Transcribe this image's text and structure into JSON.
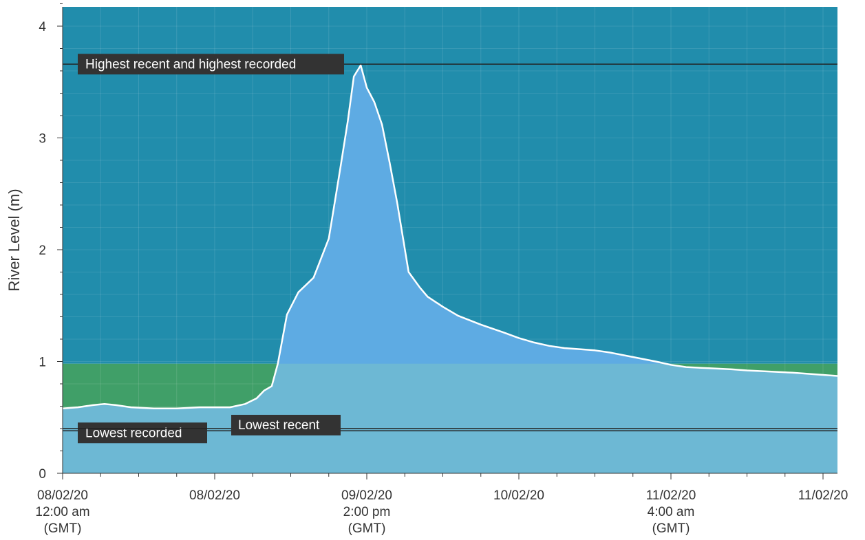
{
  "chart_data": {
    "type": "area",
    "ylabel": "River Level (m)",
    "xlabel": "",
    "ylim": [
      0,
      4.2
    ],
    "yticks": [
      "0",
      "1",
      "2",
      "3",
      "4"
    ],
    "x_range_hours": [
      0,
      102
    ],
    "xticks": [
      {
        "hour": 0,
        "lines": [
          "08/02/20",
          "12:00 am",
          "(GMT)"
        ]
      },
      {
        "hour": 20,
        "lines": [
          "08/02/20"
        ]
      },
      {
        "hour": 40,
        "lines": [
          "09/02/20",
          "2:00 pm",
          "(GMT)"
        ]
      },
      {
        "hour": 60,
        "lines": [
          "10/02/20"
        ]
      },
      {
        "hour": 80,
        "lines": [
          "11/02/20",
          "4:00 am",
          "(GMT)"
        ]
      },
      {
        "hour": 100,
        "lines": [
          "11/02/20"
        ]
      }
    ],
    "normal_range": {
      "low": 0.39,
      "high": 0.98
    },
    "annotations": [
      {
        "label": "Highest recent and highest recorded",
        "value": 3.66
      },
      {
        "label": "Lowest recorded",
        "value": 0.38
      },
      {
        "label": "Lowest recent",
        "value": 0.4
      }
    ],
    "series": [
      {
        "x": [
          0,
          2,
          4,
          5.5,
          7,
          9,
          12,
          15,
          18,
          20,
          22,
          24,
          25.5,
          26.5,
          27.5,
          28.3,
          29.5,
          31,
          33,
          35,
          36.5,
          37.5,
          38.3,
          39.2,
          40,
          41,
          42,
          43,
          44,
          45.5,
          47,
          48,
          50,
          52,
          55,
          58,
          60,
          62,
          64,
          66,
          68,
          70,
          72,
          75,
          78,
          80,
          82,
          85,
          88,
          90,
          93,
          96,
          98,
          100,
          102
        ],
        "values": [
          0.58,
          0.59,
          0.61,
          0.62,
          0.61,
          0.59,
          0.58,
          0.58,
          0.59,
          0.59,
          0.59,
          0.62,
          0.67,
          0.74,
          0.78,
          0.98,
          1.42,
          1.62,
          1.75,
          2.1,
          2.72,
          3.15,
          3.55,
          3.65,
          3.45,
          3.32,
          3.12,
          2.78,
          2.42,
          1.8,
          1.66,
          1.58,
          1.49,
          1.41,
          1.33,
          1.26,
          1.21,
          1.17,
          1.14,
          1.12,
          1.11,
          1.1,
          1.08,
          1.04,
          1.0,
          0.97,
          0.95,
          0.94,
          0.93,
          0.92,
          0.91,
          0.9,
          0.89,
          0.88,
          0.87
        ]
      }
    ],
    "colors": {
      "high_band": "#218dac",
      "normal_band": "#409f68",
      "low_band": "#5ea6cf",
      "area_fill": "#5eabe3",
      "area_normal_overlay": "#6db8d4",
      "line": "#ffffff",
      "annotation_bg": "#333333",
      "annotation_line": "#222222",
      "grid": "#ffffff"
    }
  }
}
